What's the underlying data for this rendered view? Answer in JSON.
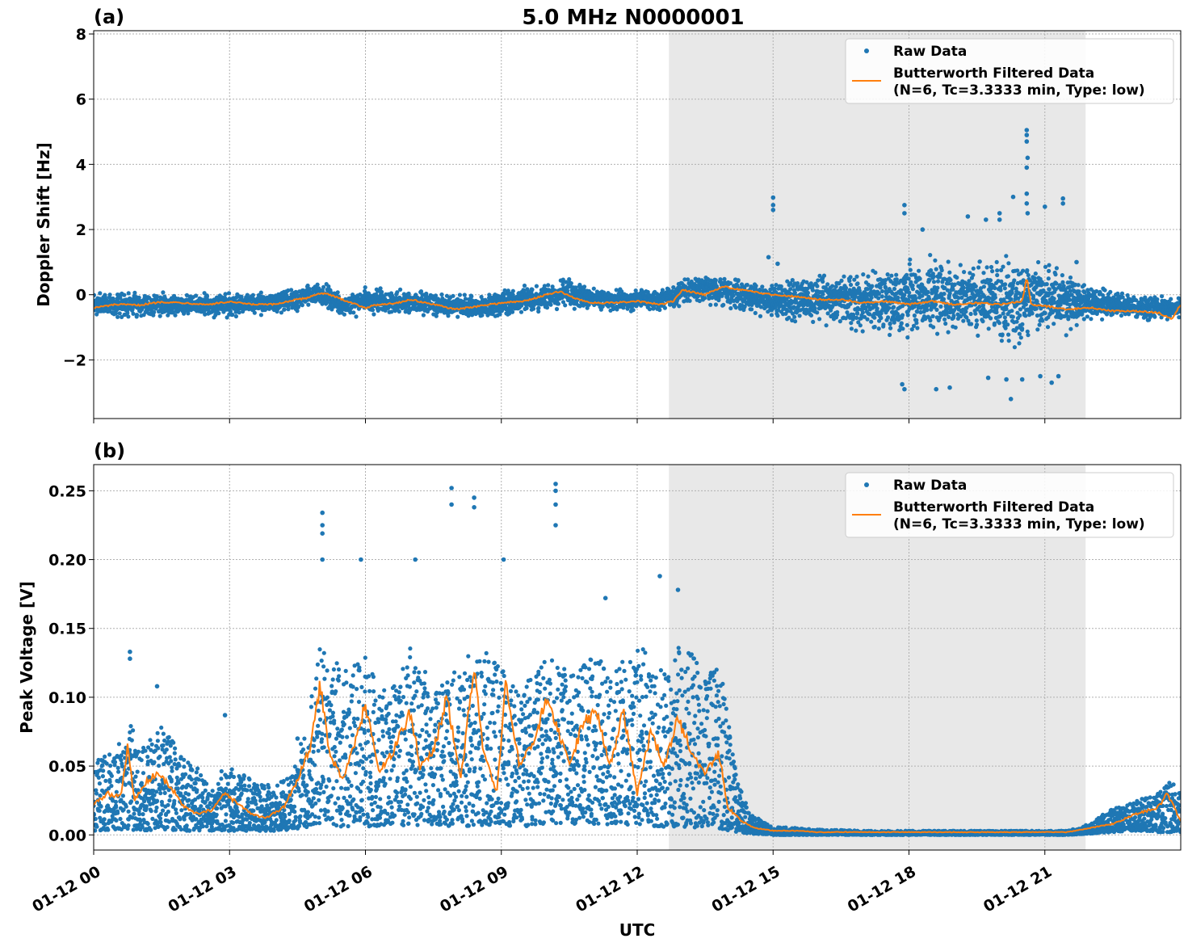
{
  "figure": {
    "suptitle": "5.0 MHz N0000001",
    "xlabel": "UTC"
  },
  "colors": {
    "raw": "#1f77b4",
    "filtered": "#ff7f0e",
    "shade": "#e8e8e8"
  },
  "chart_data": [
    {
      "panel_label": "(a)",
      "type": "scatter",
      "ylabel": "Doppler Shift [Hz]",
      "xlim_hours": [
        0,
        24
      ],
      "ylim": [
        -3.8,
        8.1
      ],
      "yticks": [
        -2,
        0,
        2,
        4,
        6,
        8
      ],
      "ytick_labels": [
        "−2",
        "0",
        "2",
        "4",
        "6",
        "8"
      ],
      "shaded_span_hours": [
        12.7,
        21.9
      ],
      "grid": true,
      "legend_position": "top-right",
      "series": [
        {
          "name": "Raw Data",
          "kind": "points",
          "band_x_hours": [
            0,
            1,
            2,
            3,
            4,
            4.5,
            5,
            5.5,
            6,
            6.5,
            7,
            8,
            8.5,
            9,
            10,
            10.5,
            11,
            12,
            12.5,
            13,
            13.5,
            14,
            15,
            15.5,
            16,
            17,
            17.5,
            18,
            18.5,
            19,
            20,
            20.5,
            21,
            21.5,
            22,
            22.5,
            23,
            24
          ],
          "band_low": [
            -0.8,
            -0.75,
            -0.7,
            -0.75,
            -0.7,
            -0.6,
            -0.4,
            -0.75,
            -0.65,
            -0.7,
            -0.7,
            -0.75,
            -0.85,
            -0.75,
            -0.65,
            -0.5,
            -0.55,
            -0.6,
            -0.6,
            -0.45,
            -0.3,
            -0.5,
            -0.8,
            -1.0,
            -1.0,
            -1.3,
            -1.6,
            -1.9,
            -1.8,
            -1.5,
            -1.7,
            -1.9,
            -1.6,
            -1.3,
            -0.9,
            -0.8,
            -0.8,
            -0.85
          ],
          "band_high": [
            0.15,
            0.2,
            0.1,
            0.15,
            0.2,
            0.3,
            0.5,
            0.05,
            0.3,
            0.25,
            0.2,
            0.1,
            0.05,
            0.2,
            0.5,
            0.65,
            0.3,
            0.2,
            0.3,
            0.6,
            0.75,
            0.6,
            0.45,
            0.6,
            0.7,
            1.0,
            1.2,
            1.5,
            1.5,
            1.3,
            1.4,
            1.6,
            1.3,
            1.0,
            0.4,
            0.2,
            0.05,
            0.05
          ],
          "outliers": [
            [
              15.0,
              2.98
            ],
            [
              15.0,
              2.75
            ],
            [
              15.0,
              2.6
            ],
            [
              14.9,
              1.15
            ],
            [
              15.1,
              0.95
            ],
            [
              17.9,
              2.75
            ],
            [
              17.9,
              2.5
            ],
            [
              17.85,
              -2.75
            ],
            [
              17.9,
              -2.9
            ],
            [
              18.3,
              2.0
            ],
            [
              18.6,
              -2.9
            ],
            [
              18.9,
              -2.85
            ],
            [
              19.3,
              2.4
            ],
            [
              19.7,
              2.3
            ],
            [
              19.75,
              -2.55
            ],
            [
              20.0,
              2.5
            ],
            [
              20.0,
              2.3
            ],
            [
              20.15,
              -2.6
            ],
            [
              20.3,
              3.0
            ],
            [
              20.6,
              5.05
            ],
            [
              20.6,
              4.9
            ],
            [
              20.6,
              4.7
            ],
            [
              20.62,
              4.2
            ],
            [
              20.6,
              3.9
            ],
            [
              20.6,
              3.1
            ],
            [
              20.6,
              2.8
            ],
            [
              20.62,
              2.5
            ],
            [
              20.5,
              -2.6
            ],
            [
              20.9,
              -2.5
            ],
            [
              21.15,
              -2.7
            ],
            [
              21.3,
              -2.5
            ],
            [
              21.0,
              2.7
            ],
            [
              21.4,
              2.95
            ],
            [
              21.4,
              2.8
            ],
            [
              21.7,
              1.0
            ],
            [
              20.25,
              -3.2
            ]
          ]
        },
        {
          "name": "Butterworth Filtered Data\n(N=6, Tc=3.3333 min, Type: low)",
          "legend_lines": [
            "Butterworth Filtered Data",
            "(N=6, Tc=3.3333 min, Type: low)"
          ],
          "kind": "line",
          "x_hours": [
            0,
            0.5,
            1,
            1.5,
            2,
            2.5,
            3,
            3.5,
            4,
            4.3,
            4.7,
            5.0,
            5.2,
            5.5,
            6,
            6.3,
            6.7,
            7,
            7.5,
            8,
            8.5,
            9,
            9.5,
            10,
            10.3,
            10.6,
            11,
            11.5,
            12,
            12.5,
            12.8,
            13.0,
            13.5,
            13.9,
            14.5,
            15,
            15.5,
            16,
            16.5,
            17,
            17.5,
            18,
            18.5,
            19,
            19.5,
            20,
            20.5,
            20.6,
            20.7,
            21,
            21.5,
            22,
            22.5,
            23,
            23.5,
            23.8,
            24
          ],
          "y": [
            -0.4,
            -0.3,
            -0.32,
            -0.22,
            -0.25,
            -0.3,
            -0.22,
            -0.3,
            -0.3,
            -0.2,
            -0.1,
            0.05,
            0.0,
            -0.15,
            -0.4,
            -0.3,
            -0.25,
            -0.15,
            -0.3,
            -0.45,
            -0.35,
            -0.25,
            -0.2,
            0.0,
            0.1,
            -0.1,
            -0.25,
            -0.25,
            -0.2,
            -0.3,
            -0.2,
            0.15,
            0.0,
            0.25,
            0.1,
            0.0,
            -0.05,
            -0.15,
            -0.15,
            -0.25,
            -0.2,
            -0.3,
            -0.2,
            -0.3,
            -0.25,
            -0.3,
            -0.2,
            0.55,
            -0.3,
            -0.35,
            -0.45,
            -0.4,
            -0.5,
            -0.5,
            -0.55,
            -0.75,
            -0.3
          ]
        }
      ]
    },
    {
      "panel_label": "(b)",
      "type": "scatter",
      "ylabel": "Peak Voltage [V]",
      "xlabel": "UTC",
      "xlim_hours": [
        0,
        24
      ],
      "ylim": [
        -0.011,
        0.269
      ],
      "yticks": [
        0.0,
        0.05,
        0.1,
        0.15,
        0.2,
        0.25
      ],
      "ytick_labels": [
        "0.00",
        "0.05",
        "0.10",
        "0.15",
        "0.20",
        "0.25"
      ],
      "xticks_hours": [
        0,
        3,
        6,
        9,
        12,
        15,
        18,
        21
      ],
      "xtick_labels": [
        "01-12 00",
        "01-12 03",
        "01-12 06",
        "01-12 09",
        "01-12 12",
        "01-12 15",
        "01-12 18",
        "01-12 21"
      ],
      "shaded_span_hours": [
        12.7,
        21.9
      ],
      "grid": true,
      "legend_position": "top-right",
      "series": [
        {
          "name": "Raw Data",
          "kind": "points",
          "band_x_hours": [
            0,
            0.5,
            0.8,
            1,
            1.5,
            2,
            2.5,
            3,
            3.5,
            4,
            4.4,
            4.8,
            5.0,
            5.5,
            6,
            6.5,
            7,
            7.5,
            8,
            8.5,
            9,
            9.5,
            10,
            10.5,
            11,
            11.5,
            12,
            12.5,
            13,
            13.5,
            13.9,
            14.2,
            14.5,
            15,
            16,
            17,
            18,
            19,
            20,
            21,
            21.5,
            22,
            22.5,
            23,
            23.5,
            23.8,
            24
          ],
          "band_low": [
            0.003,
            0.004,
            0.004,
            0.003,
            0.004,
            0.003,
            0.003,
            0.003,
            0.003,
            0.003,
            0.004,
            0.006,
            0.008,
            0.006,
            0.006,
            0.007,
            0.007,
            0.007,
            0.006,
            0.007,
            0.007,
            0.006,
            0.008,
            0.008,
            0.008,
            0.007,
            0.007,
            0.006,
            0.006,
            0.005,
            0.004,
            0.002,
            0.001,
            0.0,
            0.0,
            0.0,
            0.0,
            0.0,
            0.0,
            0.0,
            0.0,
            0.001,
            0.002,
            0.003,
            0.002,
            0.002,
            0.002
          ],
          "band_high": [
            0.055,
            0.06,
            0.09,
            0.06,
            0.08,
            0.06,
            0.04,
            0.05,
            0.04,
            0.035,
            0.045,
            0.1,
            0.14,
            0.12,
            0.13,
            0.1,
            0.14,
            0.11,
            0.12,
            0.14,
            0.12,
            0.11,
            0.13,
            0.12,
            0.13,
            0.12,
            0.14,
            0.12,
            0.14,
            0.12,
            0.12,
            0.04,
            0.015,
            0.006,
            0.004,
            0.003,
            0.003,
            0.003,
            0.003,
            0.003,
            0.003,
            0.008,
            0.02,
            0.025,
            0.03,
            0.04,
            0.03
          ],
          "outliers": [
            [
              0.8,
              0.133
            ],
            [
              0.8,
              0.128
            ],
            [
              1.4,
              0.108
            ],
            [
              5.05,
              0.234
            ],
            [
              5.05,
              0.225
            ],
            [
              5.05,
              0.219
            ],
            [
              5.05,
              0.2
            ],
            [
              5.9,
              0.2
            ],
            [
              7.1,
              0.2
            ],
            [
              7.9,
              0.252
            ],
            [
              7.9,
              0.24
            ],
            [
              8.4,
              0.245
            ],
            [
              8.4,
              0.238
            ],
            [
              9.05,
              0.2
            ],
            [
              10.2,
              0.255
            ],
            [
              10.2,
              0.25
            ],
            [
              10.2,
              0.24
            ],
            [
              10.2,
              0.225
            ],
            [
              11.3,
              0.172
            ],
            [
              12.5,
              0.188
            ],
            [
              12.9,
              0.178
            ],
            [
              13.7,
              0.118
            ],
            [
              4.5,
              0.07
            ],
            [
              2.9,
              0.087
            ]
          ]
        },
        {
          "name": "Butterworth Filtered Data\n(N=6, Tc=3.3333 min, Type: low)",
          "legend_lines": [
            "Butterworth Filtered Data",
            "(N=6, Tc=3.3333 min, Type: low)"
          ],
          "kind": "line",
          "x_hours": [
            0,
            0.3,
            0.6,
            0.75,
            0.9,
            1.2,
            1.4,
            1.7,
            2.0,
            2.3,
            2.6,
            2.9,
            3.2,
            3.5,
            3.8,
            4.2,
            4.5,
            4.8,
            5.0,
            5.2,
            5.5,
            5.8,
            6.0,
            6.3,
            6.6,
            7.0,
            7.2,
            7.5,
            7.8,
            8.1,
            8.4,
            8.6,
            8.9,
            9.1,
            9.4,
            9.7,
            10.0,
            10.2,
            10.5,
            10.8,
            11.1,
            11.4,
            11.7,
            12.0,
            12.3,
            12.6,
            12.9,
            13.2,
            13.5,
            13.8,
            14.0,
            14.3,
            14.6,
            15.0,
            15.5,
            16,
            17,
            18,
            19,
            20,
            21,
            21.5,
            22,
            22.5,
            23,
            23.5,
            23.7,
            24
          ],
          "y": [
            0.022,
            0.03,
            0.028,
            0.065,
            0.025,
            0.04,
            0.045,
            0.035,
            0.02,
            0.015,
            0.018,
            0.03,
            0.022,
            0.015,
            0.012,
            0.02,
            0.04,
            0.065,
            0.11,
            0.06,
            0.04,
            0.07,
            0.095,
            0.045,
            0.06,
            0.09,
            0.05,
            0.06,
            0.1,
            0.04,
            0.12,
            0.06,
            0.03,
            0.11,
            0.05,
            0.065,
            0.1,
            0.08,
            0.05,
            0.08,
            0.09,
            0.05,
            0.09,
            0.03,
            0.075,
            0.05,
            0.085,
            0.06,
            0.045,
            0.06,
            0.02,
            0.01,
            0.005,
            0.003,
            0.003,
            0.002,
            0.002,
            0.002,
            0.002,
            0.002,
            0.002,
            0.002,
            0.005,
            0.008,
            0.015,
            0.02,
            0.03,
            0.01
          ]
        }
      ]
    }
  ]
}
